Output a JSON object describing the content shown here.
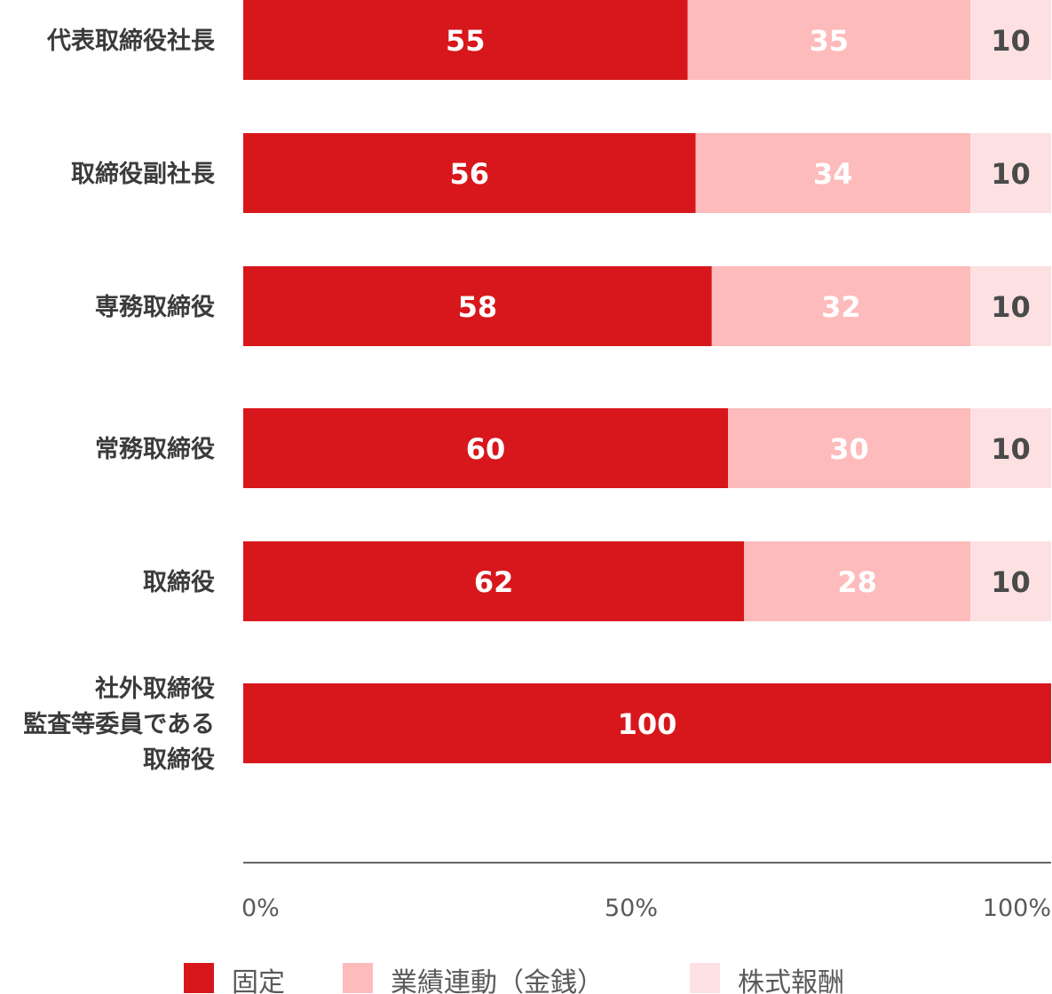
{
  "chart_data": {
    "type": "bar",
    "orientation": "horizontal",
    "stacked": true,
    "categories": [
      [
        "代表取締役社長"
      ],
      [
        "取締役副社長"
      ],
      [
        "専務取締役"
      ],
      [
        "常務取締役"
      ],
      [
        "取締役"
      ],
      [
        "社外取締役",
        "監査等委員である",
        "取締役"
      ]
    ],
    "series": [
      {
        "name": "固定",
        "color": "#d7171c",
        "label_color": "#ffffff",
        "values": [
          55,
          56,
          58,
          60,
          62,
          100
        ]
      },
      {
        "name": "業績連動（金銭）",
        "color": "#fdbbbb",
        "label_color": "#ffffff",
        "values": [
          35,
          34,
          32,
          30,
          28,
          0
        ]
      },
      {
        "name": "株式報酬",
        "color": "#fde0e1",
        "label_color": "#4a4a4a",
        "values": [
          10,
          10,
          10,
          10,
          10,
          0
        ]
      }
    ],
    "xlim": [
      0,
      100
    ],
    "x_ticks": [
      {
        "value": 0,
        "label": "0%"
      },
      {
        "value": 50,
        "label": "50%"
      },
      {
        "value": 100,
        "label": "100%"
      }
    ],
    "legend_position": "bottom",
    "grid": false
  }
}
